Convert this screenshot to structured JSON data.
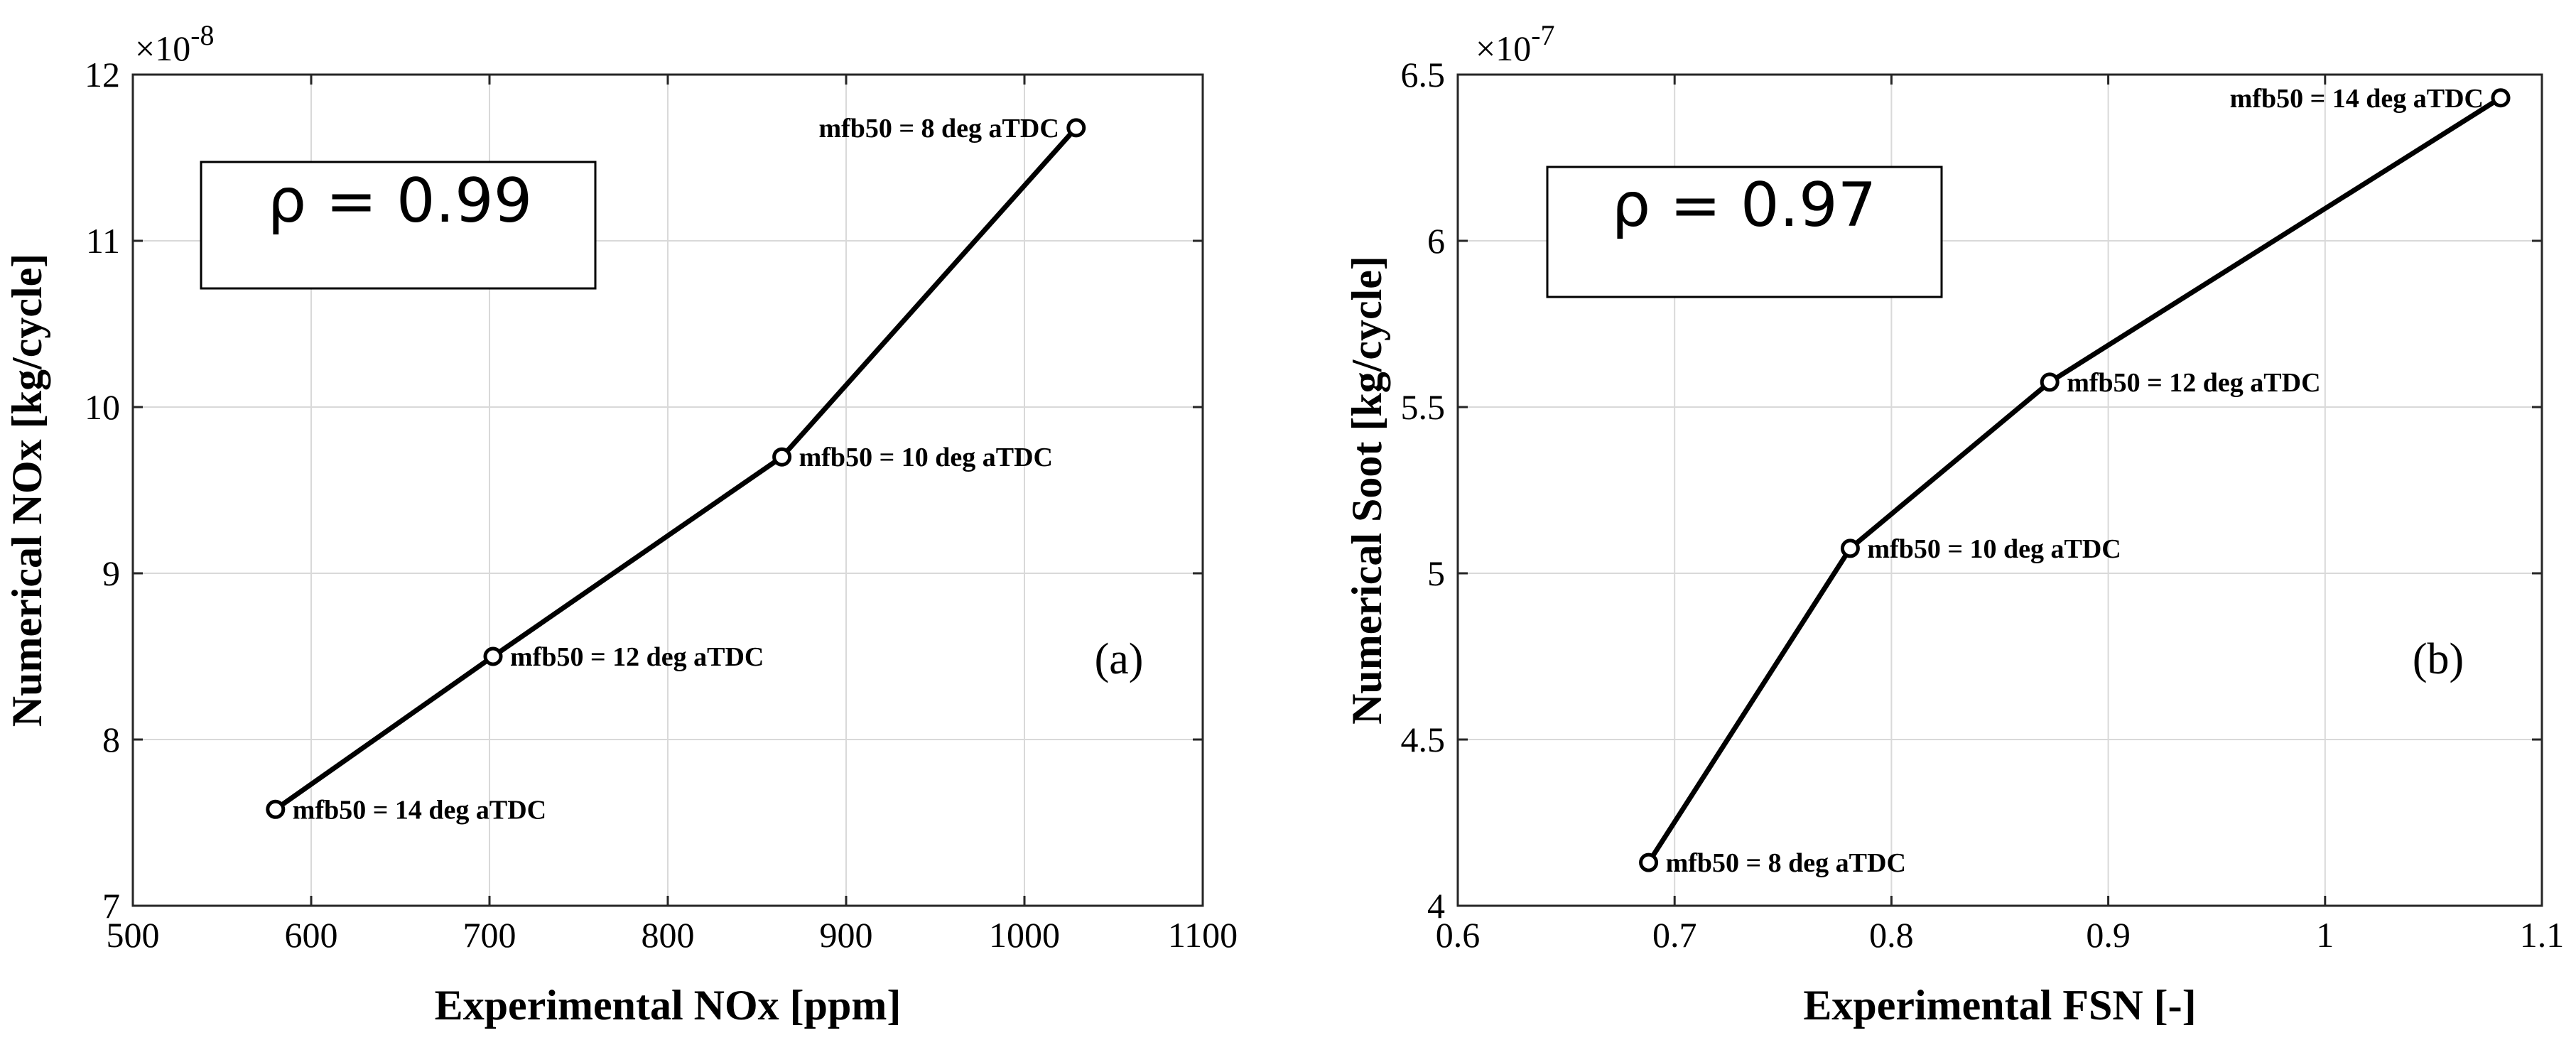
{
  "chart_data": [
    {
      "type": "line",
      "panel": "(a)",
      "xlabel": "Experimental NOx [ppm]",
      "ylabel": "Numerical NOx [kg/cycle]",
      "y_exponent_base": "×10",
      "y_exponent_power": "-8",
      "xlim": [
        500,
        1100
      ],
      "ylim": [
        7,
        12
      ],
      "xticks": [
        500,
        600,
        700,
        800,
        900,
        1000,
        1100
      ],
      "yticks": [
        7,
        8,
        9,
        10,
        11,
        12
      ],
      "grid": true,
      "annotation": "ρ = 0.99",
      "annotation_placement": "top-left",
      "panel_label_placement": "bottom-right",
      "points": [
        {
          "x": 580,
          "y": 7.58,
          "label": "mfb50 = 14 deg aTDC",
          "label_side": "right"
        },
        {
          "x": 702,
          "y": 8.5,
          "label": "mfb50 = 12 deg aTDC",
          "label_side": "right"
        },
        {
          "x": 864,
          "y": 9.7,
          "label": "mfb50 = 10 deg aTDC",
          "label_side": "right"
        },
        {
          "x": 1029,
          "y": 11.68,
          "label": "mfb50 = 8 deg aTDC",
          "label_side": "left"
        }
      ]
    },
    {
      "type": "line",
      "panel": "(b)",
      "xlabel": "Experimental FSN [-]",
      "ylabel": "Numerical Soot [kg/cycle]",
      "y_exponent_base": "×10",
      "y_exponent_power": "-7",
      "xlim": [
        0.6,
        1.1
      ],
      "ylim": [
        4,
        6.5
      ],
      "xticks": [
        0.6,
        0.7,
        0.8,
        0.9,
        1,
        1.1
      ],
      "yticks": [
        4,
        4.5,
        5,
        5.5,
        6,
        6.5
      ],
      "grid": true,
      "annotation": "ρ = 0.97",
      "annotation_placement": "top-left",
      "panel_label_placement": "bottom-right",
      "points": [
        {
          "x": 0.688,
          "y": 4.13,
          "label": "mfb50 = 8 deg aTDC",
          "label_side": "right"
        },
        {
          "x": 0.781,
          "y": 5.075,
          "label": "mfb50 = 10 deg aTDC",
          "label_side": "right"
        },
        {
          "x": 0.873,
          "y": 5.575,
          "label": "mfb50 = 12 deg aTDC",
          "label_side": "right"
        },
        {
          "x": 1.081,
          "y": 6.43,
          "label": "mfb50 = 14 deg aTDC",
          "label_side": "left"
        }
      ]
    }
  ]
}
